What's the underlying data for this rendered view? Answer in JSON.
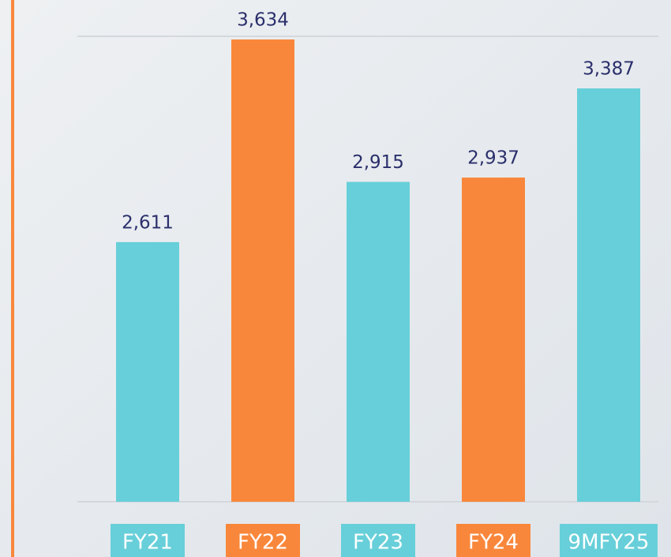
{
  "chart_data": {
    "type": "bar",
    "categories": [
      "FY21",
      "FY22",
      "FY23",
      "FY24",
      "9MFY25"
    ],
    "values": [
      2611,
      3634,
      2915,
      2937,
      3387
    ],
    "value_labels": [
      "2,611",
      "3,634",
      "2,915",
      "2,937",
      "3,387"
    ],
    "colors": [
      "#67cfd9",
      "#f9873b",
      "#67cfd9",
      "#f9873b",
      "#67cfd9"
    ],
    "ylim": [
      1300,
      3650
    ]
  }
}
